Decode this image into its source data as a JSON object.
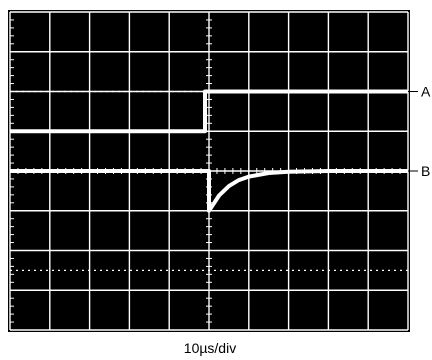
{
  "chart_data": {
    "type": "line",
    "title": "",
    "xlabel": "10µs/div",
    "ylabel": "",
    "grid": true,
    "xlim": [
      0,
      10
    ],
    "ylim": [
      -4,
      4
    ],
    "x_divisions": 10,
    "y_divisions": 8,
    "series": [
      {
        "name": "A",
        "x": [
          0,
          4.9,
          4.9,
          10
        ],
        "y": [
          1,
          1,
          2,
          2
        ]
      },
      {
        "name": "B",
        "x": [
          0,
          5,
          5,
          5.25,
          5.5,
          5.75,
          6,
          6.5,
          7,
          8,
          9,
          10
        ],
        "y": [
          0,
          0,
          -1,
          -0.62,
          -0.38,
          -0.23,
          -0.14,
          -0.05,
          -0.02,
          0,
          0,
          0
        ]
      }
    ],
    "reference_lines": [
      {
        "axis": "y",
        "value": 2
      },
      {
        "axis": "y",
        "value": -2.5
      }
    ],
    "colors": {
      "screen": "#000000",
      "graticule": "#ffffff",
      "trace": "#ffffff",
      "background": "#ffffff"
    }
  }
}
